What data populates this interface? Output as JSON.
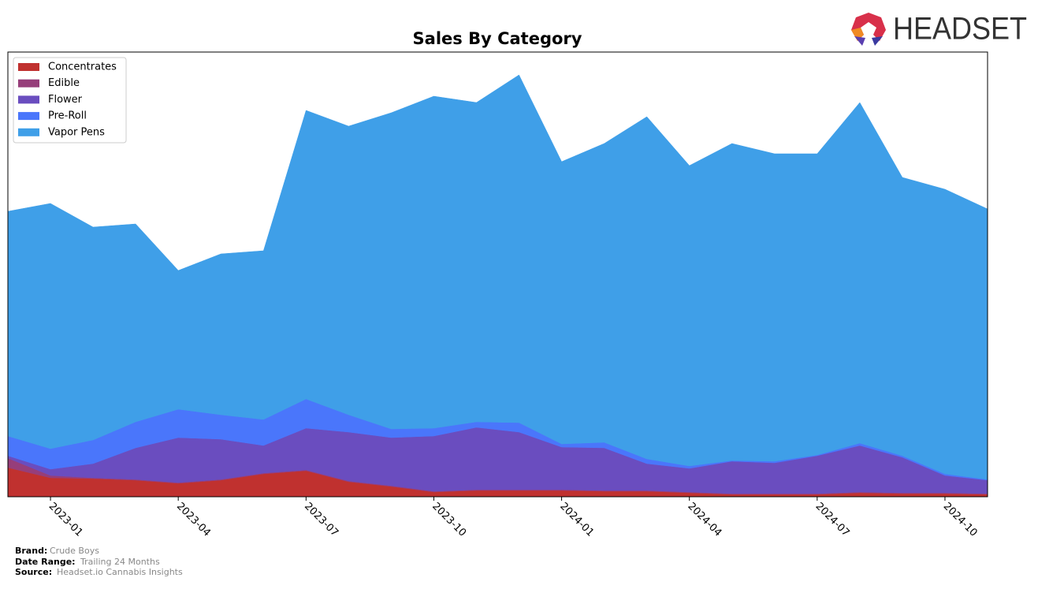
{
  "chart_data": {
    "type": "area",
    "title": "Sales By Category",
    "categories": [
      null,
      "2023-01",
      null,
      null,
      "2023-04",
      null,
      null,
      "2023-07",
      null,
      null,
      "2023-10",
      null,
      null,
      "2024-01",
      null,
      null,
      "2024-04",
      null,
      null,
      "2024-07",
      null,
      null,
      "2024-10",
      null
    ],
    "stacked": true,
    "ylim": [
      0,
      564
    ],
    "legend": "upper left",
    "series": [
      {
        "name": "Concentrates",
        "color": "#c0312f",
        "values": [
          37,
          24,
          23,
          21,
          17,
          21,
          29,
          33,
          19,
          13,
          6,
          8,
          8,
          8,
          7,
          7,
          5,
          3,
          3,
          3,
          5,
          4,
          4,
          3
        ]
      },
      {
        "name": "Edible",
        "color": "#963e7a",
        "values": [
          12,
          3,
          1,
          1,
          1,
          1,
          1,
          1,
          1,
          1,
          1,
          1,
          1,
          1,
          1,
          1,
          1,
          1,
          1,
          1,
          1,
          1,
          1,
          1
        ]
      },
      {
        "name": "Flower",
        "color": "#6a4dbf",
        "values": [
          3,
          8,
          18,
          40,
          57,
          51,
          35,
          53,
          62,
          61,
          70,
          79,
          73,
          54,
          54,
          34,
          30,
          41,
          39,
          48,
          59,
          45,
          22,
          17
        ]
      },
      {
        "name": "Pre-Roll",
        "color": "#4a76fb",
        "values": [
          25,
          26,
          30,
          33,
          36,
          31,
          33,
          37,
          22,
          11,
          10,
          7,
          12,
          4,
          7,
          6,
          3,
          1,
          2,
          1,
          3,
          2,
          2,
          1
        ]
      },
      {
        "name": "Vapor Pens",
        "color": "#3f9fe8",
        "values": [
          285,
          311,
          270,
          251,
          176,
          204,
          214,
          366,
          366,
          401,
          421,
          405,
          441,
          358,
          379,
          434,
          381,
          402,
          390,
          382,
          432,
          353,
          361,
          343
        ]
      }
    ]
  },
  "logo": "HEADSET",
  "footer": {
    "brand_label": "Brand:",
    "brand": "Crude Boys",
    "range_label": "Date Range:",
    "range": "Trailing 24 Months",
    "source_label": "Source:",
    "source": "Headset.io Cannabis Insights"
  }
}
